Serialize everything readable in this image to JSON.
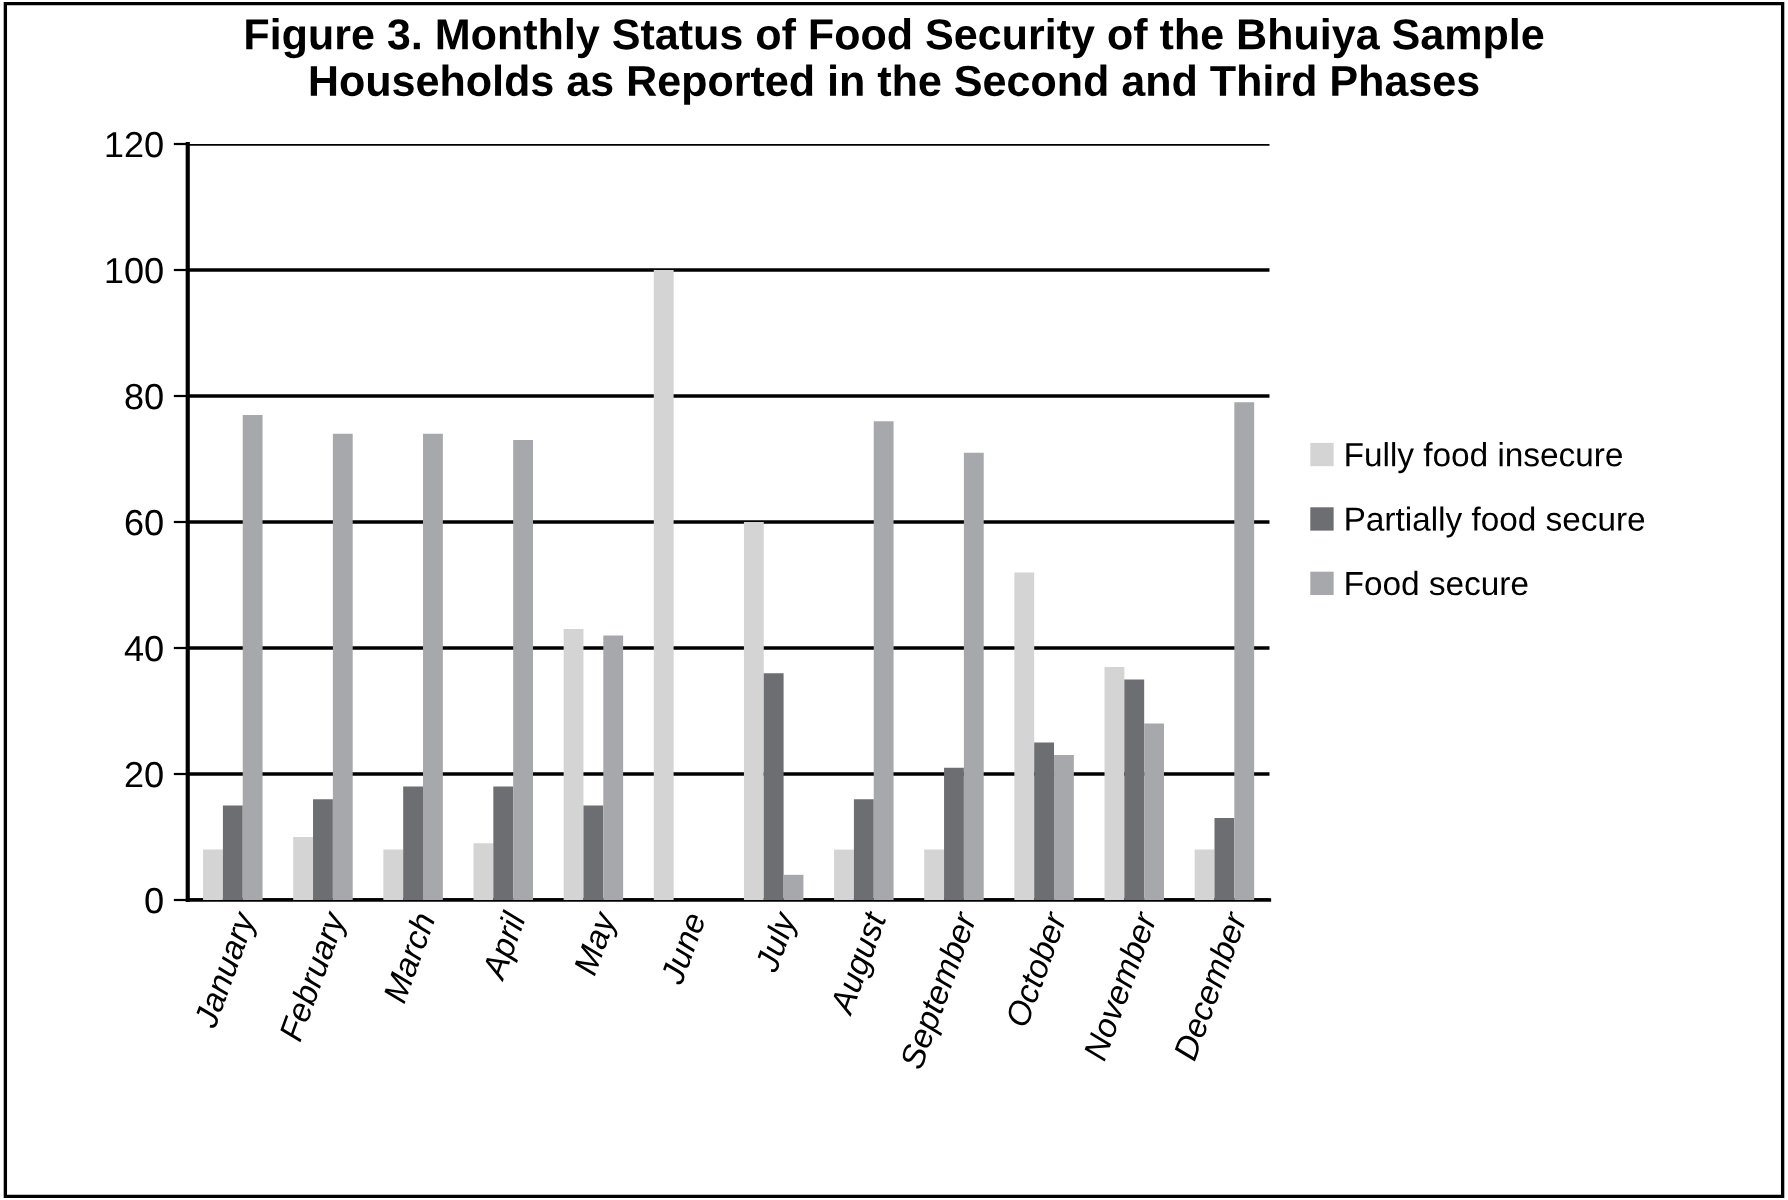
{
  "chart_data": {
    "type": "bar",
    "title": "Figure 3. Monthly Status of Food Security of the Bhuiya Sample\nHouseholds as Reported in the Second and Third Phases",
    "categories": [
      "January",
      "February",
      "March",
      "April",
      "May",
      "June",
      "July",
      "August",
      "September",
      "October",
      "November",
      "December"
    ],
    "series": [
      {
        "name": "Fully food insecure",
        "color": "#d4d4d4",
        "values": [
          8,
          10,
          8,
          9,
          43,
          100,
          60,
          8,
          8,
          52,
          37,
          8
        ]
      },
      {
        "name": "Partially food secure",
        "color": "#6d6e71",
        "values": [
          15,
          16,
          18,
          18,
          15,
          0,
          36,
          16,
          21,
          25,
          35,
          13
        ]
      },
      {
        "name": "Food secure",
        "color": "#a7a8ab",
        "values": [
          77,
          74,
          74,
          73,
          42,
          0,
          4,
          76,
          71,
          23,
          28,
          79
        ]
      }
    ],
    "ylim": [
      0,
      120
    ],
    "yticks": [
      0,
      20,
      40,
      60,
      80,
      100,
      120
    ],
    "grid": "y",
    "legend": "right"
  }
}
